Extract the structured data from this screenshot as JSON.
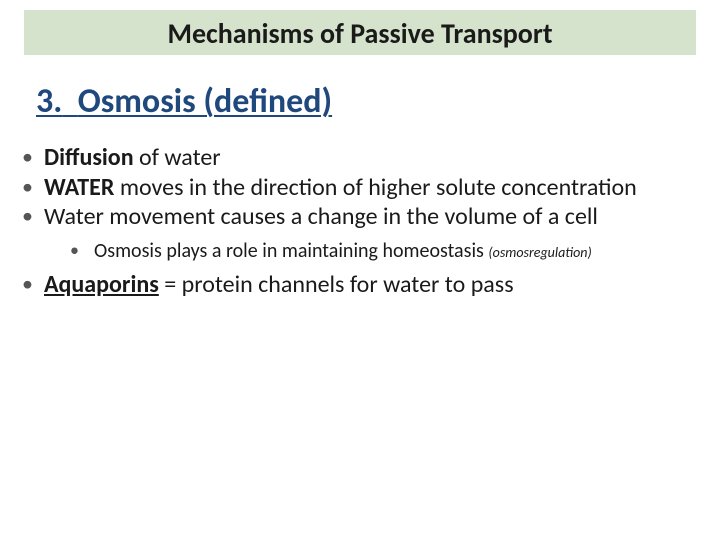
{
  "title_bar": {
    "text": "Mechanisms of Passive Transport",
    "bg_color": "#d5e3cd",
    "font_size": 28,
    "font_weight": "bold",
    "text_color": "#1a1a1a"
  },
  "section_heading": {
    "number": "3.",
    "text": "Osmosis (defined)",
    "font_size": 34,
    "font_weight": "bold",
    "text_color": "#1f497d",
    "underline": true
  },
  "bullets": [
    {
      "segments": [
        {
          "text": "Diffusion",
          "bold": true
        },
        {
          "text": " of water"
        }
      ]
    },
    {
      "segments": [
        {
          "text": "WATER",
          "bold": true
        },
        {
          "text": " moves in the direction of higher solute concentration"
        }
      ]
    },
    {
      "segments": [
        {
          "text": "Water movement causes a change in the volume of a cell"
        }
      ]
    }
  ],
  "sub_bullet": {
    "text": "Osmosis plays a role in maintaining homeostasis ",
    "paren": "(osmosregulation)"
  },
  "final_bullet": {
    "segments": [
      {
        "text": "Aquaporins",
        "bold": true,
        "underline": true
      },
      {
        "text": " = protein channels for water to pass"
      }
    ]
  },
  "style": {
    "body_font_size": 24,
    "sub_font_size": 20,
    "paren_font_size": 14,
    "bullet_color": "#555555",
    "text_color": "#1a1a1a",
    "background": "#ffffff"
  }
}
